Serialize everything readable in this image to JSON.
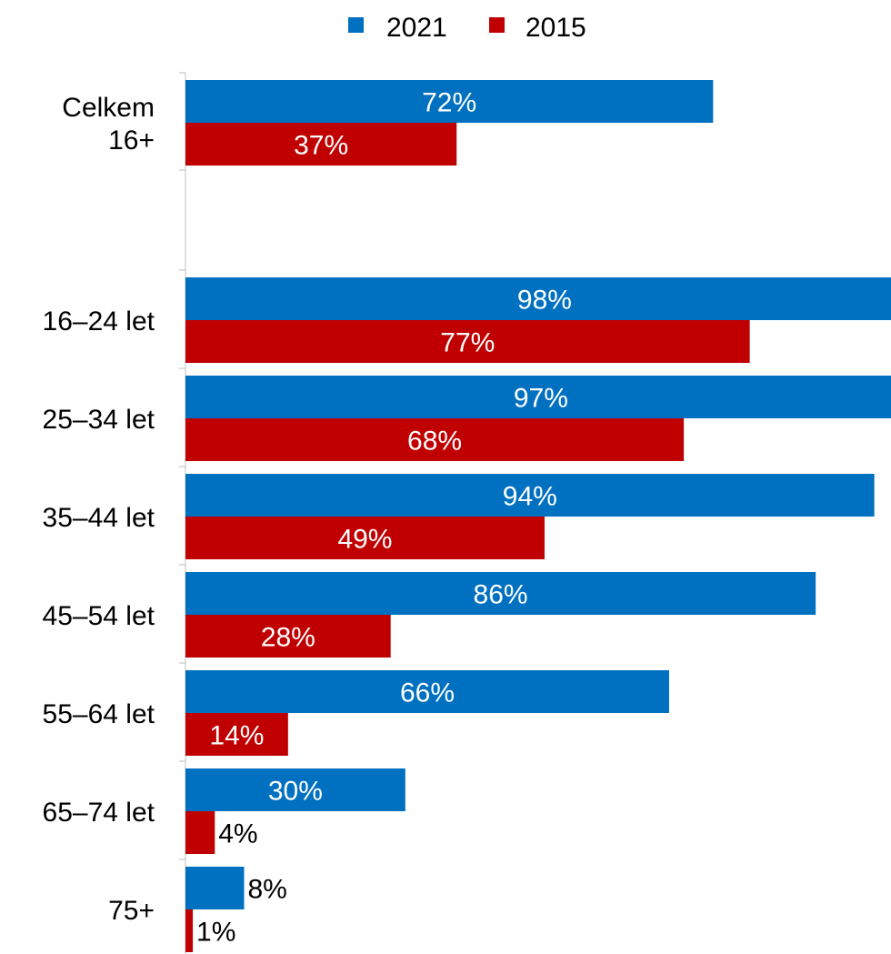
{
  "chart_data": {
    "type": "bar",
    "orientation": "horizontal",
    "legend": {
      "position": "top",
      "entries": [
        {
          "name": "2021",
          "color": "#0070C0"
        },
        {
          "name": "2015",
          "color": "#C00000"
        }
      ]
    },
    "categories": [
      [
        "Celkem",
        "16+"
      ],
      [
        "16–24 let"
      ],
      [
        "25–34 let"
      ],
      [
        "35–44 let"
      ],
      [
        "45–54 let"
      ],
      [
        "55–64 let"
      ],
      [
        "65–74 let"
      ],
      [
        "75+"
      ]
    ],
    "series": [
      {
        "name": "2021",
        "color": "#0070C0",
        "values": [
          72,
          98,
          97,
          94,
          86,
          66,
          30,
          8
        ],
        "labels": [
          "72%",
          "98%",
          "97%",
          "94%",
          "86%",
          "66%",
          "30%",
          "8%"
        ]
      },
      {
        "name": "2015",
        "color": "#C00000",
        "values": [
          37,
          77,
          68,
          49,
          28,
          14,
          4,
          1
        ],
        "labels": [
          "37%",
          "77%",
          "68%",
          "49%",
          "28%",
          "14%",
          "4%",
          "1%"
        ]
      }
    ],
    "xlim": [
      0,
      100
    ],
    "grid": false,
    "xaxis_visible": false,
    "value_unit": "%"
  }
}
